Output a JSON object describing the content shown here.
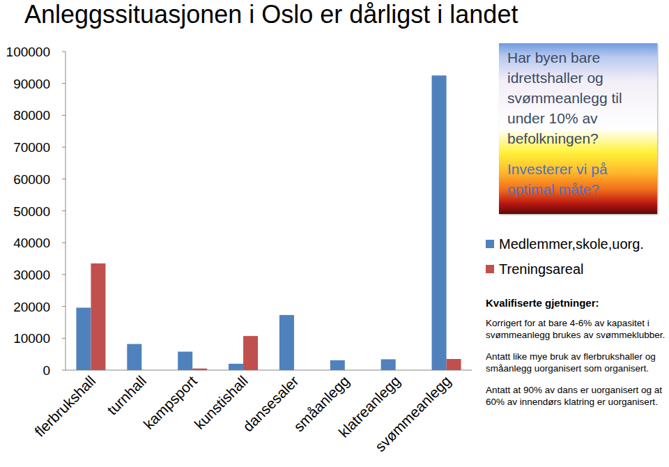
{
  "chart_data": {
    "type": "bar",
    "title": "Anleggssituasjonen i Oslo er dårligst i landet",
    "categories": [
      "flerbrukshall",
      "turnhall",
      "kampsport",
      "kunstishall",
      "dansesaler",
      "småanlegg",
      "klatreanlegg",
      "svømmeanlegg"
    ],
    "series": [
      {
        "name": "Medlemmer,skole,uorg.",
        "color": "#4f81bd",
        "values": [
          19600,
          8200,
          5800,
          2000,
          17300,
          3100,
          3400,
          92500
        ]
      },
      {
        "name": "Treningsareal",
        "color": "#c0504d",
        "values": [
          33500,
          null,
          500,
          10700,
          null,
          null,
          null,
          3500
        ]
      }
    ],
    "ylim": [
      0,
      100000
    ],
    "yticks": [
      0,
      10000,
      20000,
      30000,
      40000,
      50000,
      60000,
      70000,
      80000,
      90000,
      100000
    ],
    "grid": false,
    "legend": "right",
    "annotations": {
      "callout": [
        "Har byen bare idrettshaller og svømmeanlegg til under 10% av befolkningen?",
        "Investerer vi på optimal måte?"
      ],
      "notes_title": "Kvalifiserte gjetninger:",
      "notes": [
        "Korrigert for at bare 4-6% av kapasitet i svømmeanlegg brukes av svømmeklubber.",
        "Antatt like mye bruk av flerbrukshaller og småanlegg uorganisert som organisert.",
        "Antatt at 90% av dans er uorganisert og at 60% av innendørs klatring er uorganisert."
      ]
    }
  }
}
